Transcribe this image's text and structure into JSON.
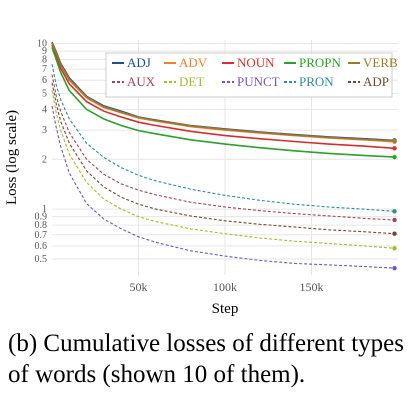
{
  "chart_data": {
    "type": "line",
    "title": "",
    "xlabel": "Step",
    "ylabel": "Loss (log scale)",
    "yscale": "log",
    "xlim": [
      0,
      200000
    ],
    "ylim": [
      0.4,
      10.5
    ],
    "x_ticks": [
      {
        "value": 50000,
        "label": "50k"
      },
      {
        "value": 100000,
        "label": "100k"
      },
      {
        "value": 150000,
        "label": "150k"
      }
    ],
    "y_ticks": [
      {
        "value": 10,
        "label": "10"
      },
      {
        "value": 9,
        "label": "9"
      },
      {
        "value": 8,
        "label": "8"
      },
      {
        "value": 7,
        "label": "7"
      },
      {
        "value": 6,
        "label": "6"
      },
      {
        "value": 5,
        "label": "5"
      },
      {
        "value": 4,
        "label": "4"
      },
      {
        "value": 3,
        "label": "3"
      },
      {
        "value": 2,
        "label": "2"
      },
      {
        "value": 1,
        "label": "1"
      },
      {
        "value": 0.9,
        "label": "0.9"
      },
      {
        "value": 0.8,
        "label": "0.8"
      },
      {
        "value": 0.7,
        "label": "0.7"
      },
      {
        "value": 0.6,
        "label": "0.6"
      },
      {
        "value": 0.5,
        "label": "0.5"
      }
    ],
    "grid": true,
    "legend_position": "top-right",
    "x": [
      0,
      2500,
      5000,
      10000,
      20000,
      30000,
      40000,
      50000,
      60000,
      80000,
      100000,
      120000,
      140000,
      160000,
      180000,
      198000
    ],
    "series": [
      {
        "name": "ADJ",
        "color": "#1f4e8c",
        "dash": "solid",
        "values": [
          10.2,
          8.9,
          7.6,
          6.2,
          4.8,
          4.2,
          3.9,
          3.6,
          3.45,
          3.2,
          3.05,
          2.92,
          2.82,
          2.73,
          2.66,
          2.6
        ]
      },
      {
        "name": "ADV",
        "color": "#f07f2a",
        "dash": "solid",
        "values": [
          10.0,
          8.6,
          7.4,
          6.0,
          4.7,
          4.1,
          3.82,
          3.55,
          3.4,
          3.15,
          3.0,
          2.88,
          2.78,
          2.69,
          2.62,
          2.55
        ]
      },
      {
        "name": "NOUN",
        "color": "#d42f2f",
        "dash": "solid",
        "values": [
          9.8,
          8.4,
          7.1,
          5.7,
          4.45,
          3.9,
          3.6,
          3.35,
          3.2,
          2.95,
          2.78,
          2.66,
          2.56,
          2.47,
          2.4,
          2.33
        ]
      },
      {
        "name": "PROPN",
        "color": "#2ca02c",
        "dash": "solid",
        "values": [
          9.5,
          8.0,
          6.7,
          5.2,
          4.0,
          3.5,
          3.2,
          2.98,
          2.85,
          2.62,
          2.47,
          2.35,
          2.25,
          2.17,
          2.11,
          2.06
        ]
      },
      {
        "name": "VERB",
        "color": "#9c7a2c",
        "dash": "solid",
        "values": [
          10.1,
          8.8,
          7.5,
          6.1,
          4.75,
          4.15,
          3.85,
          3.58,
          3.43,
          3.18,
          3.03,
          2.9,
          2.8,
          2.71,
          2.64,
          2.58
        ]
      },
      {
        "name": "AUX",
        "color": "#a2455a",
        "dash": "dashed",
        "values": [
          6.5,
          4.8,
          3.9,
          2.9,
          2.0,
          1.62,
          1.42,
          1.3,
          1.22,
          1.1,
          1.03,
          0.98,
          0.94,
          0.91,
          0.88,
          0.86
        ]
      },
      {
        "name": "DET",
        "color": "#a8b832",
        "dash": "dashed",
        "values": [
          5.2,
          3.8,
          3.0,
          2.15,
          1.45,
          1.15,
          1.0,
          0.9,
          0.84,
          0.76,
          0.71,
          0.67,
          0.64,
          0.62,
          0.6,
          0.58
        ]
      },
      {
        "name": "PUNCT",
        "color": "#7357b8",
        "dash": "dashed",
        "values": [
          4.2,
          3.1,
          2.4,
          1.65,
          1.08,
          0.87,
          0.76,
          0.68,
          0.63,
          0.56,
          0.52,
          0.49,
          0.47,
          0.46,
          0.45,
          0.44
        ]
      },
      {
        "name": "PRON",
        "color": "#2e8d99",
        "dash": "dashed",
        "values": [
          7.5,
          5.6,
          4.6,
          3.5,
          2.5,
          2.05,
          1.78,
          1.6,
          1.48,
          1.32,
          1.21,
          1.13,
          1.07,
          1.03,
          1.0,
          0.97
        ]
      },
      {
        "name": "ADP",
        "color": "#6e4b34",
        "dash": "dashed",
        "values": [
          5.8,
          4.3,
          3.4,
          2.5,
          1.7,
          1.36,
          1.18,
          1.07,
          1.0,
          0.91,
          0.85,
          0.81,
          0.78,
          0.75,
          0.73,
          0.71
        ]
      }
    ]
  },
  "caption": {
    "line1": "(b) Cumulative losses of different types",
    "line2": "of words (shown 10 of them)."
  }
}
